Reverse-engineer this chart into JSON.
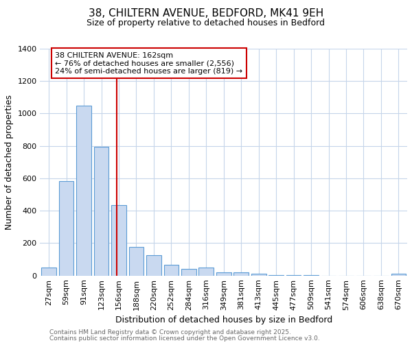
{
  "title_line1": "38, CHILTERN AVENUE, BEDFORD, MK41 9EH",
  "title_line2": "Size of property relative to detached houses in Bedford",
  "xlabel": "Distribution of detached houses by size in Bedford",
  "ylabel": "Number of detached properties",
  "categories": [
    "27sqm",
    "59sqm",
    "91sqm",
    "123sqm",
    "156sqm",
    "188sqm",
    "220sqm",
    "252sqm",
    "284sqm",
    "316sqm",
    "349sqm",
    "381sqm",
    "413sqm",
    "445sqm",
    "477sqm",
    "509sqm",
    "541sqm",
    "574sqm",
    "606sqm",
    "638sqm",
    "670sqm"
  ],
  "values": [
    50,
    585,
    1050,
    795,
    435,
    178,
    125,
    68,
    40,
    48,
    22,
    20,
    12,
    4,
    4,
    2,
    0,
    0,
    0,
    0,
    12
  ],
  "bar_color": "#c9d9f0",
  "bar_edge_color": "#5b9bd5",
  "background_color": "#ffffff",
  "grid_color": "#c5d5ea",
  "vline_color": "#cc0000",
  "annotation_text": "38 CHILTERN AVENUE: 162sqm\n← 76% of detached houses are smaller (2,556)\n24% of semi-detached houses are larger (819) →",
  "annotation_box_color": "#ffffff",
  "annotation_box_edge": "#cc0000",
  "ylim": [
    0,
    1400
  ],
  "yticks": [
    0,
    200,
    400,
    600,
    800,
    1000,
    1200,
    1400
  ],
  "footnote_line1": "Contains HM Land Registry data © Crown copyright and database right 2025.",
  "footnote_line2": "Contains public sector information licensed under the Open Government Licence v3.0.",
  "footnote_color": "#666666",
  "title_fontsize": 11,
  "subtitle_fontsize": 9,
  "axis_label_fontsize": 9,
  "tick_fontsize": 8,
  "annotation_fontsize": 8,
  "footnote_fontsize": 6.5
}
